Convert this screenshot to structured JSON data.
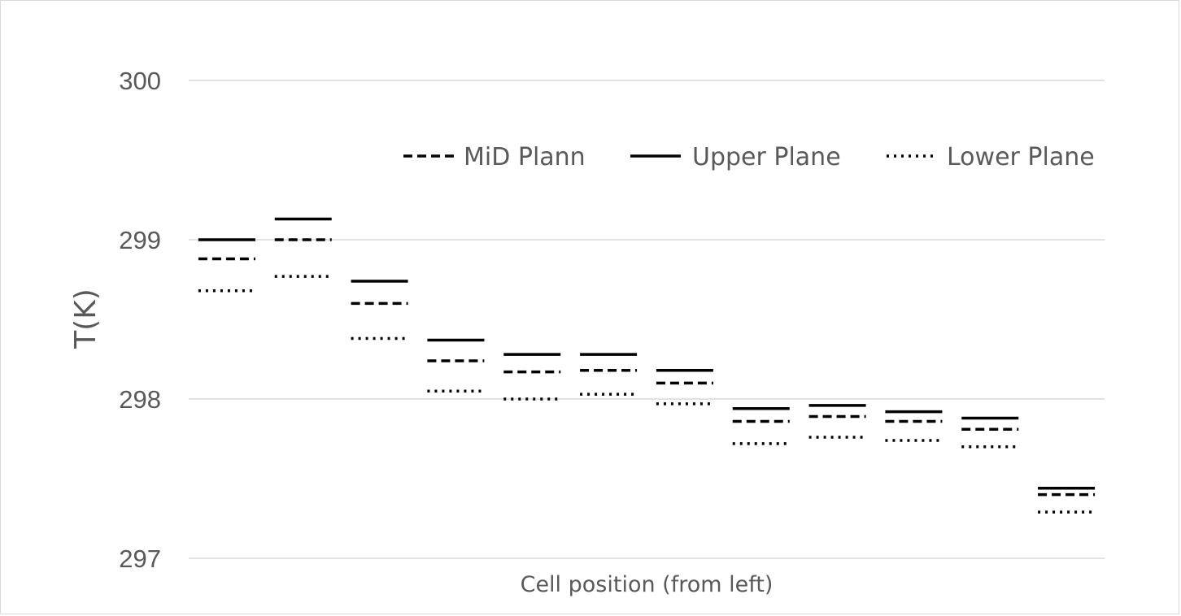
{
  "chart_data": {
    "type": "line",
    "title": "",
    "xlabel": "Cell position (from left)",
    "ylabel": "T(K)",
    "ylim": [
      297,
      300
    ],
    "yticks": [
      "297",
      "298",
      "299",
      "300"
    ],
    "grid": true,
    "legend_position": "top-right",
    "x": [
      1,
      2,
      3,
      4,
      5,
      6,
      7,
      8,
      9,
      10,
      11,
      12
    ],
    "series": [
      {
        "name": "MiD Plann",
        "style": "dashed",
        "color": "#000000",
        "values": [
          298.88,
          299.0,
          298.6,
          298.24,
          298.17,
          298.18,
          298.1,
          297.86,
          297.89,
          297.86,
          297.81,
          297.4
        ]
      },
      {
        "name": "Upper Plane",
        "style": "solid",
        "color": "#000000",
        "values": [
          299.0,
          299.13,
          298.74,
          298.37,
          298.28,
          298.28,
          298.18,
          297.94,
          297.96,
          297.92,
          297.88,
          297.44
        ]
      },
      {
        "name": "Lower Plane",
        "style": "dotted",
        "color": "#000000",
        "values": [
          298.68,
          298.77,
          298.38,
          298.05,
          298.0,
          298.03,
          297.97,
          297.72,
          297.76,
          297.74,
          297.7,
          297.29
        ]
      }
    ]
  }
}
